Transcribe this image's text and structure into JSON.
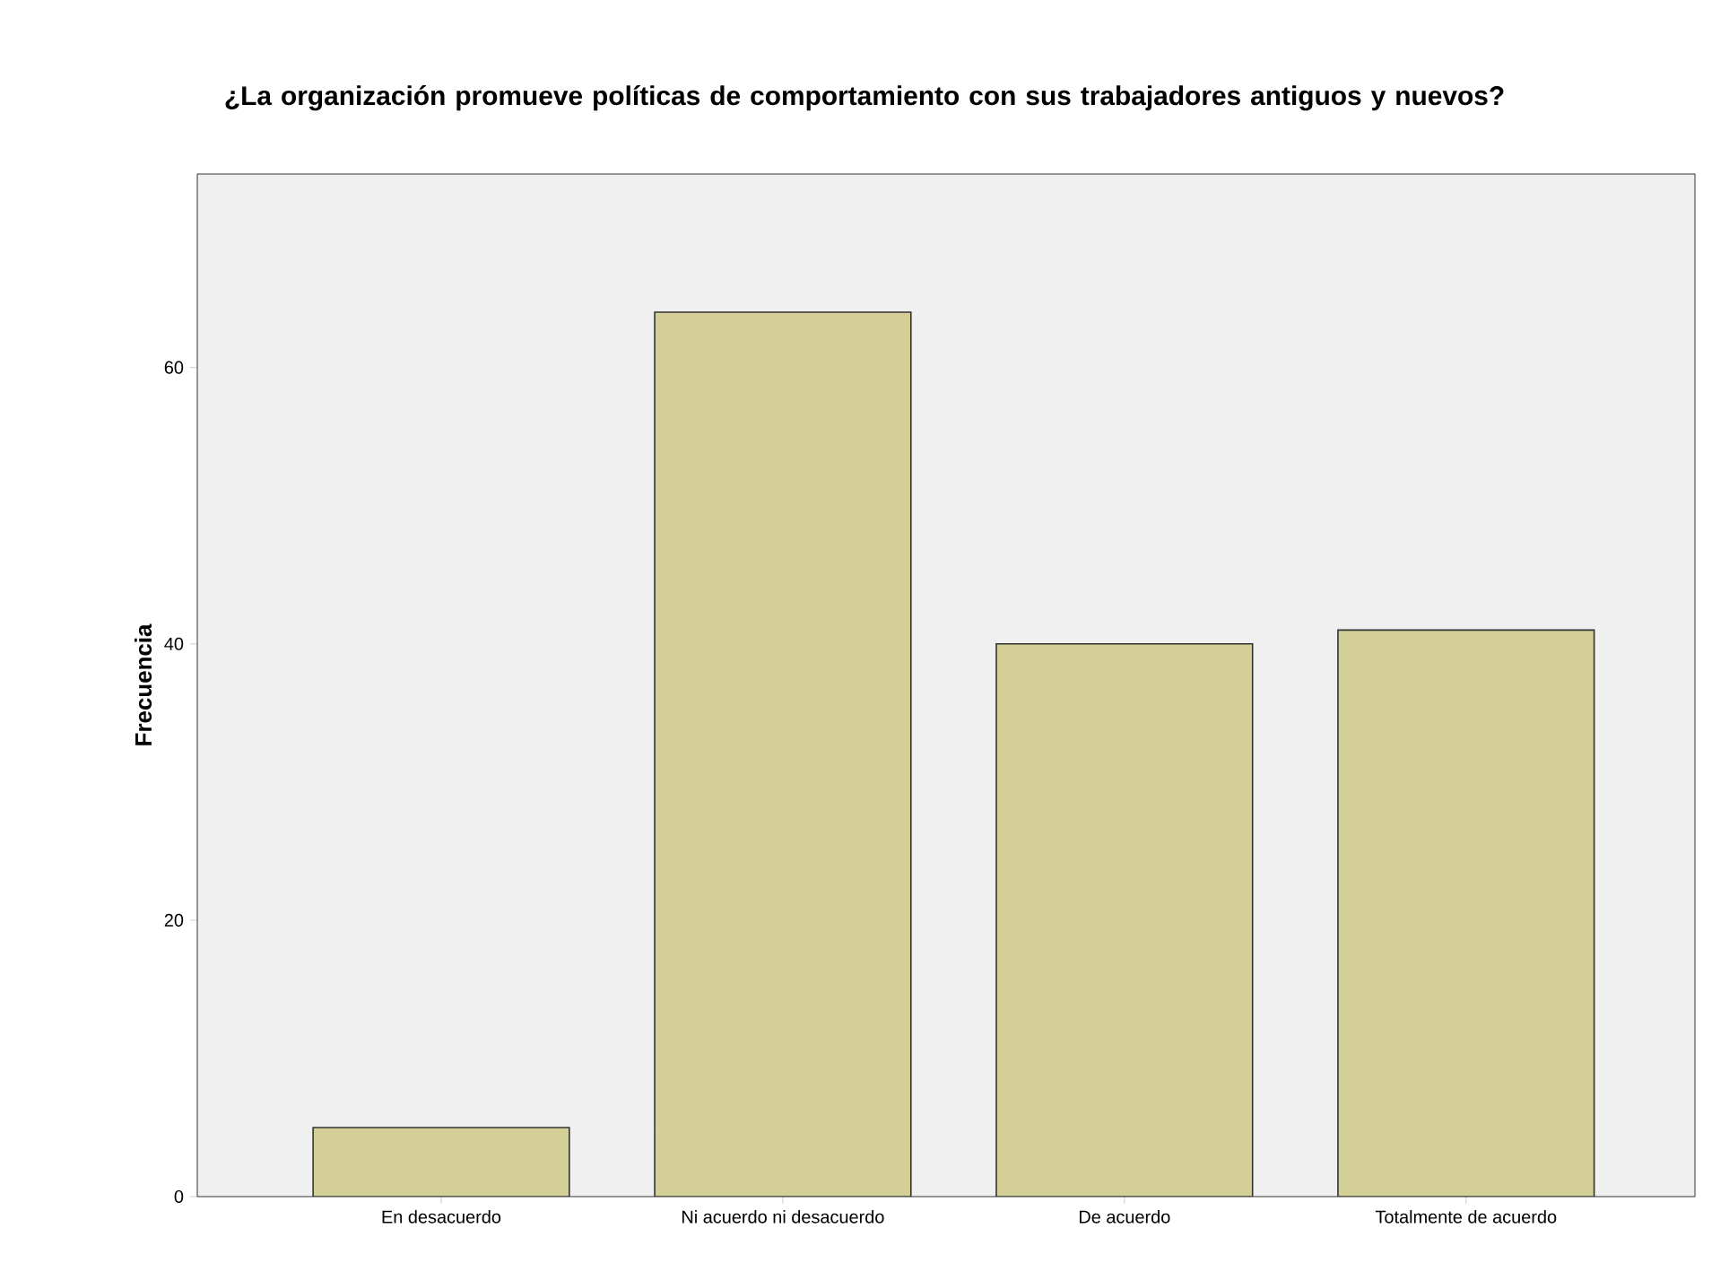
{
  "chart_data": {
    "type": "bar",
    "title": "¿La organización promueve políticas de comportamiento con sus trabajadores antiguos y nuevos?",
    "ylabel": "Frecuencia",
    "categories": [
      "En desacuerdo",
      "Ni acuerdo ni desacuerdo",
      "De acuerdo",
      "Totalmente de acuerdo"
    ],
    "values": [
      5,
      64,
      40,
      41
    ],
    "color": "#d3cf97",
    "ylim": [
      0,
      74
    ],
    "yticks": [
      0,
      20,
      40,
      60
    ]
  }
}
